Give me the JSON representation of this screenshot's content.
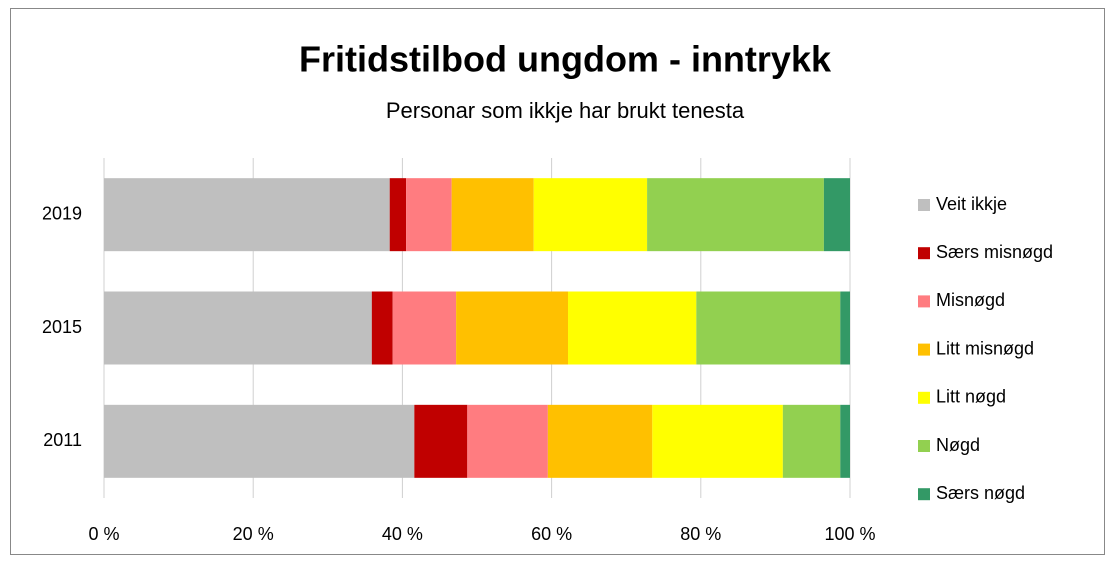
{
  "chart_data": {
    "type": "stacked-barh",
    "title": "Fritidstilbod ungdom - inntrykk",
    "subtitle": "Personar som ikkje har brukt tenesta",
    "categories": [
      "2019",
      "2015",
      "2011"
    ],
    "series": [
      {
        "name": "Veit ikkje",
        "color": "#bfbfbf",
        "values": [
          38.3,
          35.9,
          41.6
        ]
      },
      {
        "name": "Særs misnøgd",
        "color": "#c00000",
        "values": [
          2.2,
          2.8,
          7.1
        ]
      },
      {
        "name": "Misnøgd",
        "color": "#ff7c80",
        "values": [
          6.1,
          8.5,
          10.8
        ]
      },
      {
        "name": "Litt misnøgd",
        "color": "#ffc000",
        "values": [
          11.0,
          15.0,
          14.0
        ]
      },
      {
        "name": "Litt nøgd",
        "color": "#ffff00",
        "values": [
          15.2,
          17.2,
          17.5
        ]
      },
      {
        "name": "Nøgd",
        "color": "#92d050",
        "values": [
          23.7,
          19.3,
          7.7
        ]
      },
      {
        "name": "Særs nøgd",
        "color": "#339966",
        "values": [
          3.5,
          1.3,
          1.3
        ]
      }
    ],
    "xlim": [
      0,
      100
    ],
    "xticks": [
      {
        "value": 0,
        "label": "0 %"
      },
      {
        "value": 20,
        "label": "20 %"
      },
      {
        "value": 40,
        "label": "40 %"
      },
      {
        "value": 60,
        "label": "60 %"
      },
      {
        "value": 80,
        "label": "80 %"
      },
      {
        "value": 100,
        "label": "100 %"
      }
    ],
    "grid": true,
    "legend": "right"
  }
}
